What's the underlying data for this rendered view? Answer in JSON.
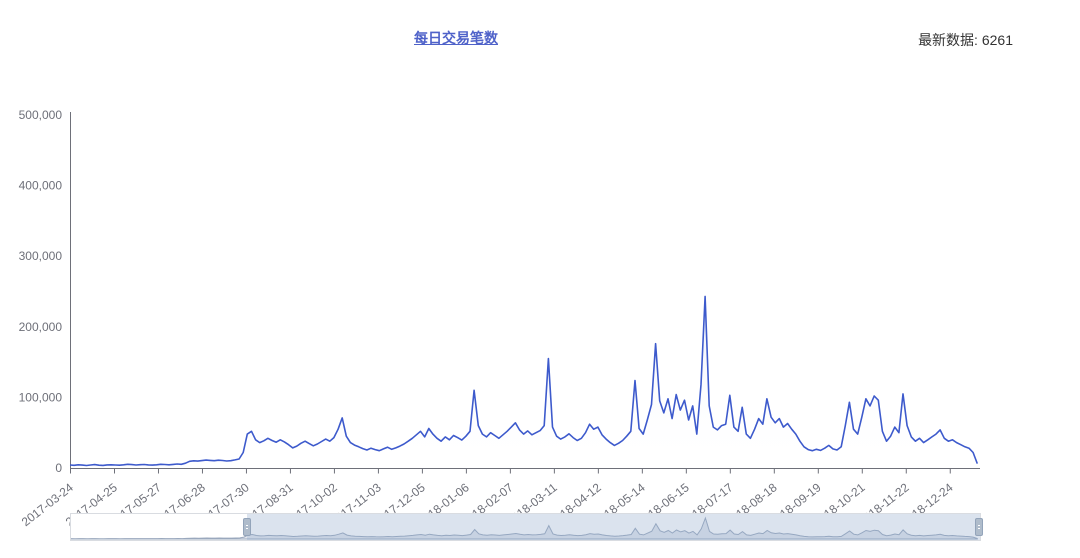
{
  "header": {
    "title": "每日交易笔数",
    "latest_label": "最新数据: 6261"
  },
  "chart_data": {
    "type": "area",
    "title": "每日交易笔数",
    "legend": [],
    "grid": false,
    "x_start_date": "2017-03-24",
    "x_end_date": "2019-01-13",
    "x_total_days": 662,
    "sample_step_days": 3,
    "x_tick_interval_days": 32,
    "x_tick_labels": [
      "2017-03-24",
      "2017-04-25",
      "2017-05-27",
      "2017-06-28",
      "2017-07-30",
      "2017-08-31",
      "2017-10-02",
      "2017-11-03",
      "2017-12-05",
      "2018-01-06",
      "2018-02-07",
      "2018-03-11",
      "2018-04-12",
      "2018-05-14",
      "2018-06-15",
      "2018-07-17",
      "2018-08-18",
      "2018-09-19",
      "2018-10-21",
      "2018-11-22",
      "2018-12-24"
    ],
    "ylim": [
      0,
      500000
    ],
    "y_tick_values": [
      0,
      100000,
      200000,
      300000,
      400000,
      500000
    ],
    "y_tick_labels": [
      "0",
      "100,000",
      "200,000",
      "300,000",
      "400,000",
      "500,000"
    ],
    "latest_value": 6261,
    "values": [
      4200,
      3800,
      4500,
      4100,
      3600,
      4300,
      4800,
      4000,
      3700,
      4400,
      4600,
      4200,
      3900,
      4500,
      5200,
      4800,
      4300,
      4700,
      5000,
      4400,
      4100,
      4600,
      5300,
      4900,
      4500,
      5100,
      5600,
      5200,
      6800,
      9500,
      10200,
      9800,
      10500,
      11200,
      10800,
      10300,
      11000,
      10600,
      9900,
      10400,
      11500,
      12800,
      22000,
      48000,
      52000,
      40000,
      36000,
      38500,
      42000,
      39000,
      36500,
      40000,
      37000,
      33000,
      28500,
      31000,
      35000,
      38000,
      34500,
      31500,
      34000,
      37500,
      41000,
      38000,
      43000,
      55000,
      71000,
      45000,
      36000,
      32500,
      30000,
      27500,
      25500,
      28000,
      26000,
      24500,
      27000,
      29500,
      26500,
      28500,
      31000,
      34000,
      38000,
      42000,
      47000,
      52000,
      44000,
      56000,
      48000,
      42000,
      38000,
      44000,
      40000,
      46000,
      43000,
      39500,
      45000,
      52000,
      110000,
      60000,
      48000,
      44000,
      50000,
      46000,
      42000,
      47000,
      52000,
      58000,
      64000,
      54000,
      48000,
      52500,
      47000,
      50000,
      53000,
      60000,
      155000,
      58000,
      45000,
      41000,
      44000,
      48500,
      43000,
      39000,
      42000,
      50000,
      62000,
      55000,
      58000,
      47000,
      41000,
      36000,
      32000,
      35000,
      39000,
      45000,
      52000,
      124000,
      56000,
      48000,
      68000,
      90000,
      176000,
      95000,
      78000,
      98000,
      70000,
      104000,
      82000,
      96000,
      68000,
      88000,
      48000,
      118000,
      243000,
      88000,
      58000,
      54000,
      60000,
      62000,
      103000,
      58000,
      52000,
      86000,
      48000,
      42000,
      55000,
      70000,
      62000,
      98000,
      72000,
      64000,
      70000,
      58000,
      63000,
      55000,
      48000,
      38000,
      30000,
      26000,
      24500,
      26500,
      25000,
      28000,
      32000,
      27000,
      25500,
      30000,
      60000,
      93000,
      55000,
      48000,
      72000,
      98000,
      88000,
      102000,
      96000,
      52000,
      38000,
      45000,
      58000,
      50000,
      105000,
      60000,
      44000,
      38000,
      42000,
      36000,
      40000,
      44000,
      48000,
      54000,
      42000,
      38000,
      40000,
      36000,
      33000,
      30000,
      28000,
      22000,
      6261
    ],
    "colors": {
      "line": "#3d5acc",
      "area_top": "rgba(80,110,210,0.45)",
      "area_bottom": "rgba(255,255,255,0)",
      "axis": "#6E7079",
      "tick_label": "#6E7079",
      "title_link": "#4f62c9",
      "latest_text": "#333333"
    }
  },
  "datazoom": {
    "start_percent": 19.4,
    "end_percent": 100,
    "colors": {
      "selected_fill": "rgba(144,168,201,0.32)",
      "handle_fill": "#afbccb",
      "handle_border": "#93a4ba",
      "shadow_line": "#9aa8bd",
      "shadow_fill": "rgba(150,165,190,0.28)"
    }
  }
}
